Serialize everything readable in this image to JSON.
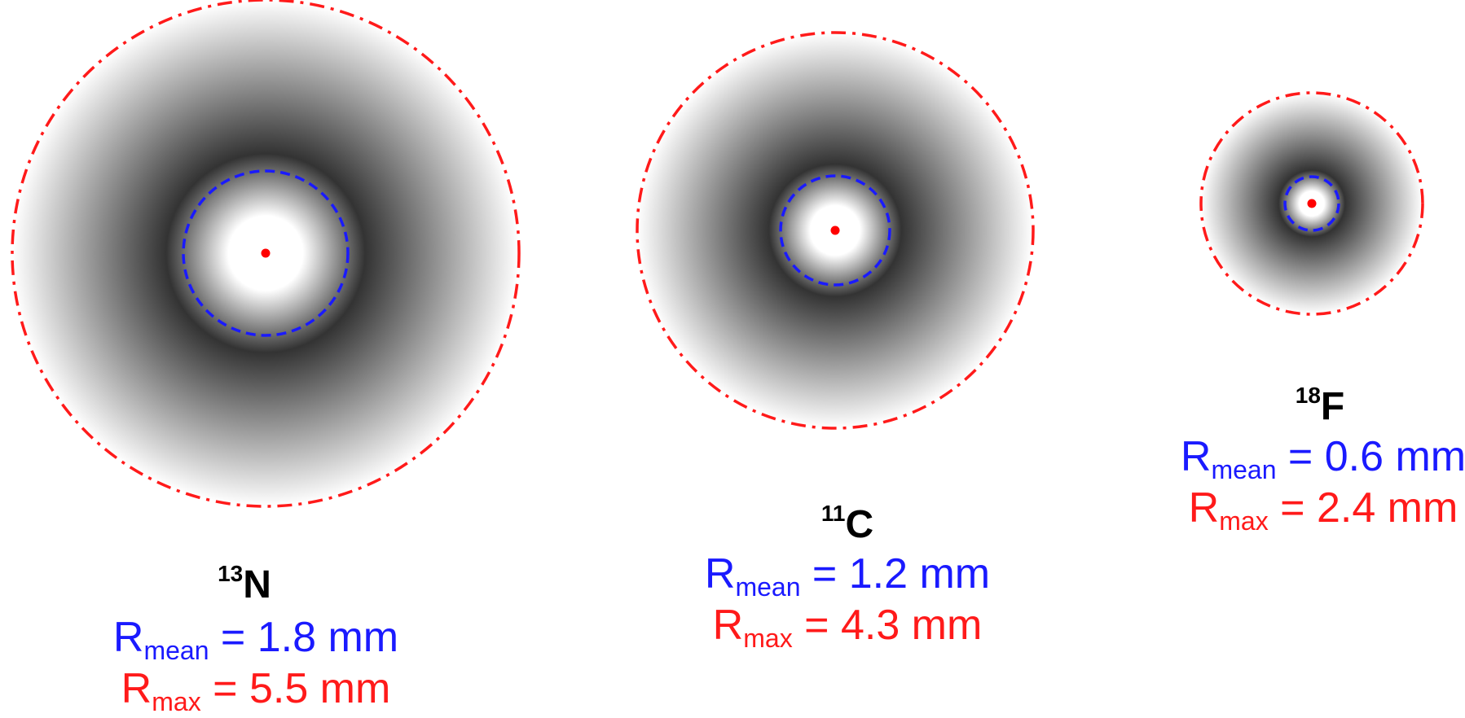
{
  "colors": {
    "mean": "#1a1aff",
    "max": "#ff1a1a",
    "point": "#ff0000",
    "dark": "#333333",
    "light": "#ffffff",
    "label": "#000000"
  },
  "labels": {
    "r_symbol": "R",
    "mean_sub": "mean",
    "max_sub": "max"
  },
  "isotopes": [
    {
      "id": "n13",
      "mass": "13",
      "symbol": "N",
      "r_mean_mm": 1.8,
      "r_max_mm": 5.5,
      "mean_text": " = 1.8 mm",
      "max_text": " = 5.5 mm"
    },
    {
      "id": "c11",
      "mass": "11",
      "symbol": "C",
      "r_mean_mm": 1.2,
      "r_max_mm": 4.3,
      "mean_text": " = 1.2 mm",
      "max_text": " = 4.3 mm"
    },
    {
      "id": "f18",
      "mass": "18",
      "symbol": "F",
      "r_mean_mm": 0.6,
      "r_max_mm": 2.4,
      "mean_text": " = 0.6 mm",
      "max_text": " = 2.4 mm"
    }
  ]
}
